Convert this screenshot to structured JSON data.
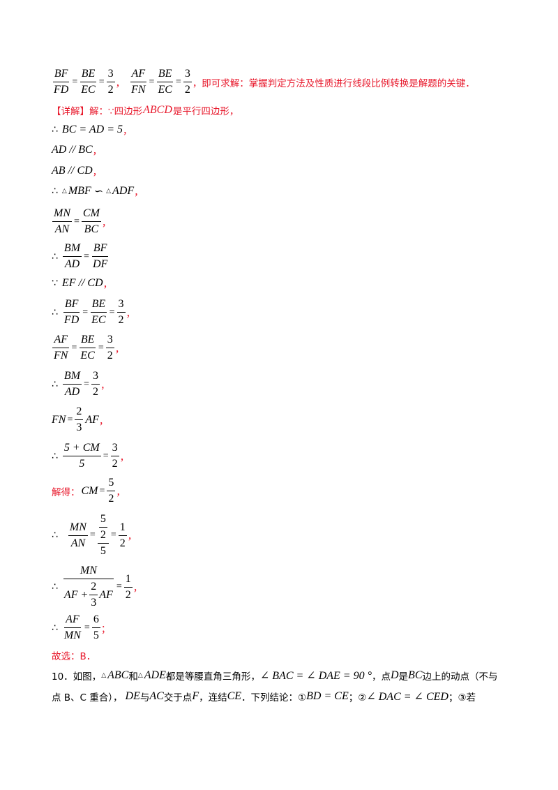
{
  "colors": {
    "red": "#e8192c",
    "text": "#000000"
  },
  "line1": {
    "f1": {
      "num": "BF",
      "den": "FD"
    },
    "f2": {
      "num": "BE",
      "den": "EC"
    },
    "f3": {
      "num": "3",
      "den": "2"
    },
    "f4": {
      "num": "AF",
      "den": "FN"
    },
    "f5": {
      "num": "BE",
      "den": "EC"
    },
    "f6": {
      "num": "3",
      "den": "2"
    },
    "sep": "，",
    "text": "，即可求解：掌握判定方法及性质进行线段比例转换是解题的关键．"
  },
  "line2": {
    "label": "【详解】",
    "text1": "解：∵四边形",
    "abcd": "ABCD",
    "text2": "是平行四边形，"
  },
  "line3": {
    "sym": "∴",
    "expr": "BC = AD = 5",
    "tail": "，"
  },
  "line4": {
    "expr": "AD // BC",
    "tail": "，"
  },
  "line5": {
    "expr": "AB // CD",
    "tail": "，"
  },
  "line6": {
    "sym": "∴",
    "t1": "MBF",
    "rel": "∽",
    "t2": "ADF",
    "tail": "，"
  },
  "line7": {
    "f1": {
      "num": "MN",
      "den": "AN"
    },
    "f2": {
      "num": "CM",
      "den": "BC"
    },
    "tail": "，"
  },
  "line8": {
    "sym": "∴",
    "f1": {
      "num": "BM",
      "den": "AD"
    },
    "f2": {
      "num": "BF",
      "den": "DF"
    }
  },
  "line9": {
    "sym": "∵",
    "expr": "EF // CD",
    "tail": "，"
  },
  "line10": {
    "sym": "∴",
    "f1": {
      "num": "BF",
      "den": "FD"
    },
    "f2": {
      "num": "BE",
      "den": "EC"
    },
    "f3": {
      "num": "3",
      "den": "2"
    },
    "tail": "，"
  },
  "line11": {
    "f1": {
      "num": "AF",
      "den": "FN"
    },
    "f2": {
      "num": "BE",
      "den": "EC"
    },
    "f3": {
      "num": "3",
      "den": "2"
    },
    "tail": "，"
  },
  "line12": {
    "sym": "∴",
    "f1": {
      "num": "BM",
      "den": "AD"
    },
    "f2": {
      "num": "3",
      "den": "2"
    },
    "tail": "，"
  },
  "line13": {
    "lhs": "FN",
    "f1": {
      "num": "2",
      "den": "3"
    },
    "rhs": "AF",
    "tail": "，"
  },
  "line14": {
    "sym": "∴",
    "f1": {
      "num": "5 + CM",
      "den": "5"
    },
    "f2": {
      "num": "3",
      "den": "2"
    },
    "tail": "，"
  },
  "line15": {
    "label": "解得：",
    "lhs": "CM",
    "f1": {
      "num": "5",
      "den": "2"
    },
    "tail": "，"
  },
  "line16": {
    "sym": "∴",
    "f1": {
      "num": "MN",
      "den": "AN"
    },
    "cf": {
      "num_top": "5",
      "num_bot": "2",
      "den": "5"
    },
    "f3": {
      "num": "1",
      "den": "2"
    },
    "tail": "，"
  },
  "line17": {
    "sym": "∴",
    "num": "MN",
    "den_a": "AF + ",
    "den_f": {
      "num": "2",
      "den": "3"
    },
    "den_b": "AF",
    "f2": {
      "num": "1",
      "den": "2"
    },
    "tail": "，"
  },
  "line18": {
    "sym": "∴",
    "f1": {
      "num": "AF",
      "den": "MN"
    },
    "f2": {
      "num": "6",
      "den": "5"
    },
    "tail": "；"
  },
  "line19": {
    "text": "故选：B．"
  },
  "q10": {
    "l1_a": "10．如图，",
    "l1_t1": "ABC",
    "l1_b": "和",
    "l1_t2": "ADE",
    "l1_c": "都是等腰直角三角形，",
    "l1_ang": "∠ BAC = ∠ DAE = 90 °",
    "l1_d": "，点 ",
    "l1_D": "D",
    "l1_e": "是",
    "l1_BC": "BC",
    "l1_f": "边上的动点（不与",
    "l2_a": "点 B、C 重合），",
    "l2_DE": "DE",
    "l2_b": "与",
    "l2_AC": "AC",
    "l2_c": "交于点",
    "l2_F": "F",
    "l2_d": "，连结",
    "l2_CE": "CE",
    "l2_e": "．下列结论：①",
    "l2_r1": "BD = CE",
    "l2_f": "；②",
    "l2_r2": "∠ DAC = ∠ CED",
    "l2_g": "；③若"
  }
}
